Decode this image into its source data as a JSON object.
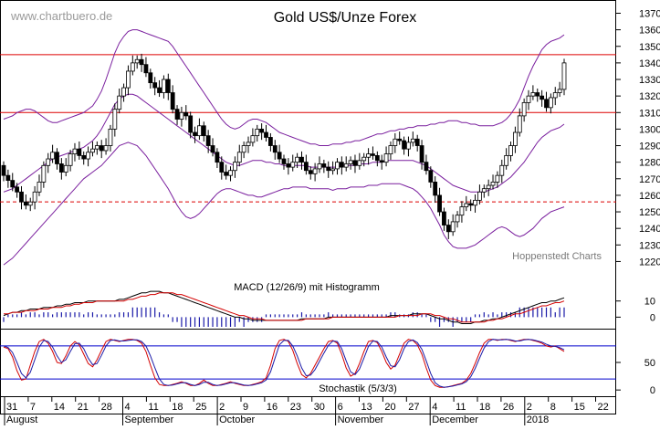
{
  "chart_data": {
    "type": "candlestick",
    "title": "Gold US$/Unze Forex",
    "watermark": "www.chartbuero.de",
    "credit": "Hoppenstedt Charts",
    "price_axis": {
      "ylim": [
        1207,
        1378
      ],
      "ticks": [
        1220,
        1230,
        1240,
        1250,
        1260,
        1270,
        1280,
        1290,
        1300,
        1310,
        1320,
        1330,
        1340,
        1350,
        1360,
        1370
      ],
      "tick_labels": [
        "1220",
        "1230",
        "1240",
        "1250",
        "1260",
        "1270",
        "1280",
        "1290",
        "1300",
        "1310",
        "1320",
        "1330",
        "1340",
        "1350",
        "1360",
        "1370"
      ]
    },
    "x_axis": {
      "day_labels": [
        "31",
        "7",
        "14",
        "21",
        "28",
        "4",
        "11",
        "18",
        "25",
        "2",
        "9",
        "16",
        "23",
        "30",
        "6",
        "13",
        "20",
        "27",
        "4",
        "11",
        "18",
        "26",
        "2",
        "8",
        "15",
        "22"
      ],
      "month_labels": [
        "August",
        "September",
        "October",
        "November",
        "December",
        "2018"
      ]
    },
    "horizontal_lines": [
      {
        "value": 1345,
        "style": "solid",
        "color": "#dd0000"
      },
      {
        "value": 1310,
        "style": "solid",
        "color": "#dd0000"
      },
      {
        "value": 1256,
        "style": "dashed",
        "color": "#dd0000"
      }
    ],
    "candles": {
      "close": [
        1272,
        1269,
        1265,
        1262,
        1256,
        1254,
        1256,
        1262,
        1268,
        1278,
        1282,
        1286,
        1279,
        1274,
        1278,
        1285,
        1288,
        1284,
        1282,
        1286,
        1288,
        1290,
        1287,
        1290,
        1300,
        1312,
        1320,
        1325,
        1335,
        1340,
        1342,
        1339,
        1334,
        1328,
        1325,
        1322,
        1330,
        1322,
        1312,
        1306,
        1310,
        1308,
        1298,
        1296,
        1302,
        1296,
        1290,
        1286,
        1280,
        1274,
        1272,
        1275,
        1280,
        1286,
        1290,
        1292,
        1296,
        1300,
        1298,
        1295,
        1290,
        1286,
        1282,
        1279,
        1277,
        1280,
        1283,
        1280,
        1275,
        1273,
        1276,
        1279,
        1277,
        1275,
        1276,
        1280,
        1277,
        1279,
        1281,
        1278,
        1281,
        1283,
        1285,
        1284,
        1281,
        1280,
        1285,
        1290,
        1294,
        1293,
        1288,
        1292,
        1294,
        1290,
        1280,
        1275,
        1268,
        1260,
        1250,
        1242,
        1238,
        1244,
        1248,
        1253,
        1255,
        1254,
        1257,
        1262,
        1264,
        1266,
        1268,
        1272,
        1278,
        1284,
        1290,
        1298,
        1308,
        1316,
        1320,
        1322,
        1320,
        1318,
        1313,
        1319,
        1322,
        1324,
        1340
      ],
      "open": [
        1278,
        1272,
        1269,
        1265,
        1262,
        1256,
        1254,
        1256,
        1262,
        1268,
        1278,
        1282,
        1286,
        1279,
        1274,
        1278,
        1285,
        1288,
        1284,
        1282,
        1286,
        1288,
        1290,
        1287,
        1290,
        1300,
        1312,
        1320,
        1325,
        1335,
        1340,
        1342,
        1339,
        1334,
        1328,
        1325,
        1322,
        1330,
        1322,
        1312,
        1306,
        1310,
        1308,
        1298,
        1296,
        1302,
        1296,
        1290,
        1286,
        1280,
        1274,
        1272,
        1275,
        1280,
        1286,
        1290,
        1292,
        1296,
        1300,
        1298,
        1295,
        1290,
        1286,
        1282,
        1279,
        1277,
        1280,
        1283,
        1280,
        1275,
        1273,
        1276,
        1279,
        1277,
        1275,
        1276,
        1280,
        1277,
        1279,
        1281,
        1278,
        1281,
        1283,
        1285,
        1284,
        1281,
        1280,
        1285,
        1290,
        1294,
        1293,
        1288,
        1292,
        1294,
        1290,
        1280,
        1275,
        1268,
        1260,
        1250,
        1242,
        1238,
        1244,
        1248,
        1253,
        1255,
        1254,
        1257,
        1262,
        1264,
        1266,
        1268,
        1272,
        1278,
        1284,
        1290,
        1298,
        1308,
        1316,
        1320,
        1322,
        1320,
        1318,
        1313,
        1319,
        1322,
        1324
      ]
    },
    "bollinger": {
      "upper": [
        1306,
        1307,
        1308,
        1310,
        1311,
        1312,
        1312,
        1311,
        1309,
        1307,
        1305,
        1304,
        1304,
        1305,
        1306,
        1307,
        1308,
        1309,
        1310,
        1312,
        1314,
        1318,
        1323,
        1330,
        1338,
        1346,
        1352,
        1356,
        1359,
        1360,
        1360,
        1359,
        1358,
        1357,
        1356,
        1355,
        1354,
        1353,
        1350,
        1346,
        1342,
        1338,
        1334,
        1330,
        1326,
        1322,
        1318,
        1314,
        1310,
        1306,
        1303,
        1301,
        1300,
        1301,
        1303,
        1305,
        1306,
        1306,
        1305,
        1304,
        1302,
        1300,
        1298,
        1297,
        1296,
        1295,
        1294,
        1293,
        1292,
        1291,
        1291,
        1290,
        1290,
        1290,
        1291,
        1291,
        1291,
        1292,
        1292,
        1293,
        1293,
        1294,
        1295,
        1296,
        1297,
        1297,
        1298,
        1299,
        1299,
        1300,
        1300,
        1301,
        1301,
        1302,
        1302,
        1302,
        1303,
        1303,
        1304,
        1304,
        1305,
        1305,
        1305,
        1304,
        1304,
        1303,
        1303,
        1302,
        1302,
        1302,
        1302,
        1303,
        1304,
        1306,
        1309,
        1313,
        1318,
        1325,
        1332,
        1338,
        1343,
        1348,
        1351,
        1353,
        1354,
        1355,
        1357
      ],
      "middle": [
        1262,
        1263,
        1264,
        1266,
        1268,
        1270,
        1272,
        1274,
        1276,
        1278,
        1280,
        1282,
        1283,
        1284,
        1285,
        1286,
        1287,
        1288,
        1289,
        1291,
        1293,
        1296,
        1300,
        1305,
        1310,
        1315,
        1318,
        1320,
        1321,
        1321,
        1320,
        1318,
        1316,
        1314,
        1312,
        1310,
        1308,
        1306,
        1304,
        1302,
        1300,
        1298,
        1296,
        1294,
        1292,
        1290,
        1288,
        1286,
        1284,
        1282,
        1280,
        1279,
        1278,
        1278,
        1279,
        1280,
        1281,
        1281,
        1281,
        1280,
        1280,
        1279,
        1279,
        1278,
        1278,
        1278,
        1278,
        1278,
        1278,
        1277,
        1277,
        1277,
        1277,
        1277,
        1277,
        1277,
        1278,
        1278,
        1278,
        1278,
        1279,
        1279,
        1279,
        1280,
        1280,
        1280,
        1281,
        1281,
        1281,
        1281,
        1281,
        1281,
        1281,
        1280,
        1279,
        1278,
        1276,
        1274,
        1272,
        1270,
        1268,
        1266,
        1265,
        1264,
        1263,
        1262,
        1262,
        1262,
        1262,
        1263,
        1264,
        1265,
        1267,
        1269,
        1271,
        1274,
        1277,
        1280,
        1284,
        1288,
        1292,
        1295,
        1297,
        1299,
        1300,
        1301,
        1303
      ],
      "lower": [
        1218,
        1220,
        1222,
        1225,
        1228,
        1231,
        1234,
        1237,
        1240,
        1243,
        1246,
        1249,
        1252,
        1255,
        1258,
        1261,
        1264,
        1267,
        1270,
        1272,
        1274,
        1276,
        1278,
        1281,
        1284,
        1287,
        1290,
        1291,
        1292,
        1291,
        1290,
        1287,
        1284,
        1280,
        1276,
        1272,
        1268,
        1264,
        1259,
        1254,
        1250,
        1247,
        1246,
        1247,
        1249,
        1252,
        1255,
        1258,
        1261,
        1263,
        1264,
        1264,
        1263,
        1262,
        1261,
        1260,
        1260,
        1259,
        1259,
        1260,
        1261,
        1262,
        1263,
        1264,
        1264,
        1265,
        1265,
        1265,
        1265,
        1264,
        1264,
        1264,
        1264,
        1264,
        1263,
        1264,
        1264,
        1264,
        1265,
        1265,
        1265,
        1265,
        1266,
        1266,
        1266,
        1267,
        1267,
        1267,
        1267,
        1267,
        1266,
        1265,
        1264,
        1262,
        1259,
        1256,
        1252,
        1247,
        1242,
        1236,
        1232,
        1229,
        1228,
        1228,
        1228,
        1229,
        1230,
        1232,
        1234,
        1236,
        1238,
        1240,
        1241,
        1240,
        1238,
        1236,
        1235,
        1236,
        1238,
        1240,
        1243,
        1246,
        1248,
        1250,
        1251,
        1252,
        1253
      ]
    },
    "macd": {
      "label": "MACD (12/26/9) mit Histogramm",
      "ylim": [
        -6,
        20
      ],
      "ticks": [
        0,
        10
      ],
      "tick_labels": [
        "0",
        "10"
      ],
      "macd": [
        1,
        2,
        3,
        3,
        4,
        4,
        5,
        5,
        5,
        6,
        6,
        6,
        7,
        7,
        8,
        8,
        9,
        9,
        9,
        10,
        10,
        10,
        10,
        10,
        10,
        10,
        11,
        11,
        12,
        13,
        14,
        15,
        15,
        16,
        16,
        16,
        15,
        15,
        14,
        13,
        12,
        11,
        10,
        9,
        8,
        7,
        6,
        5,
        4,
        3,
        2,
        1,
        0,
        0,
        -1,
        -1,
        -2,
        -2,
        -2,
        -2,
        -2,
        -2,
        -2,
        -2,
        -2,
        -2,
        -2,
        -1,
        -1,
        -1,
        -1,
        -1,
        -1,
        0,
        0,
        0,
        0,
        0,
        0,
        0,
        0,
        0,
        0,
        0,
        0,
        0,
        0,
        1,
        1,
        1,
        1,
        1,
        2,
        2,
        2,
        2,
        1,
        0,
        -1,
        -1,
        -2,
        -3,
        -3,
        -4,
        -4,
        -4,
        -3,
        -3,
        -2,
        -2,
        -1,
        -1,
        0,
        1,
        2,
        3,
        4,
        5,
        6,
        7,
        8,
        9,
        9,
        10,
        10,
        11,
        12
      ],
      "signal": [
        2,
        2,
        3,
        3,
        3,
        4,
        4,
        4,
        5,
        5,
        5,
        6,
        6,
        6,
        7,
        7,
        8,
        8,
        9,
        9,
        9,
        10,
        10,
        10,
        10,
        10,
        10,
        10,
        11,
        11,
        12,
        13,
        13,
        14,
        14,
        15,
        15,
        15,
        15,
        14,
        14,
        13,
        12,
        11,
        10,
        9,
        8,
        7,
        6,
        5,
        4,
        3,
        2,
        1,
        1,
        0,
        -1,
        -1,
        -1,
        -2,
        -2,
        -2,
        -2,
        -2,
        -2,
        -2,
        -2,
        -2,
        -1,
        -1,
        -1,
        -1,
        -1,
        -1,
        0,
        0,
        0,
        0,
        0,
        0,
        0,
        0,
        0,
        0,
        0,
        0,
        0,
        0,
        0,
        1,
        1,
        1,
        1,
        1,
        2,
        2,
        2,
        1,
        1,
        0,
        -1,
        -1,
        -2,
        -3,
        -3,
        -3,
        -3,
        -3,
        -3,
        -2,
        -2,
        -1,
        -1,
        0,
        1,
        2,
        2,
        3,
        4,
        5,
        6,
        7,
        7,
        8,
        9,
        9,
        10
      ]
    },
    "stochastic": {
      "label": "Stochastik (5/3/3)",
      "ylim": [
        -8,
        108
      ],
      "ticks": [
        0,
        50
      ],
      "tick_labels": [
        "0",
        "50"
      ],
      "reference_lines": [
        20,
        80
      ],
      "k": [
        78,
        75,
        60,
        35,
        18,
        20,
        45,
        70,
        88,
        92,
        85,
        70,
        50,
        48,
        62,
        80,
        88,
        82,
        65,
        48,
        42,
        55,
        72,
        88,
        92,
        90,
        88,
        90,
        92,
        92,
        90,
        85,
        70,
        45,
        22,
        10,
        8,
        8,
        10,
        12,
        15,
        12,
        8,
        8,
        12,
        18,
        12,
        8,
        8,
        10,
        12,
        15,
        12,
        10,
        8,
        8,
        10,
        12,
        15,
        22,
        45,
        75,
        90,
        92,
        88,
        72,
        48,
        28,
        22,
        30,
        45,
        60,
        75,
        88,
        90,
        85,
        65,
        40,
        25,
        30,
        48,
        70,
        88,
        90,
        86,
        70,
        50,
        38,
        45,
        65,
        85,
        92,
        90,
        82,
        65,
        40,
        18,
        8,
        5,
        5,
        6,
        8,
        10,
        12,
        18,
        30,
        48,
        68,
        85,
        92,
        92,
        90,
        92,
        92,
        90,
        88,
        90,
        92,
        92,
        90,
        88,
        85,
        80,
        78,
        80,
        75,
        70
      ],
      "d": [
        80,
        77,
        68,
        50,
        30,
        22,
        32,
        55,
        78,
        90,
        88,
        78,
        62,
        50,
        55,
        70,
        84,
        85,
        75,
        58,
        46,
        48,
        63,
        80,
        90,
        91,
        89,
        89,
        90,
        91,
        91,
        88,
        80,
        62,
        40,
        20,
        10,
        8,
        9,
        11,
        13,
        13,
        10,
        8,
        10,
        14,
        14,
        10,
        8,
        9,
        11,
        13,
        13,
        11,
        9,
        8,
        9,
        11,
        13,
        18,
        33,
        58,
        82,
        90,
        90,
        80,
        62,
        40,
        26,
        27,
        37,
        52,
        67,
        81,
        89,
        88,
        75,
        53,
        33,
        28,
        38,
        58,
        79,
        89,
        88,
        78,
        60,
        44,
        42,
        55,
        75,
        88,
        91,
        86,
        74,
        53,
        30,
        13,
        7,
        5,
        6,
        7,
        9,
        11,
        15,
        24,
        39,
        58,
        76,
        88,
        92,
        91,
        91,
        92,
        91,
        89,
        89,
        91,
        92,
        91,
        89,
        87,
        83,
        80,
        79,
        77,
        73
      ]
    }
  }
}
